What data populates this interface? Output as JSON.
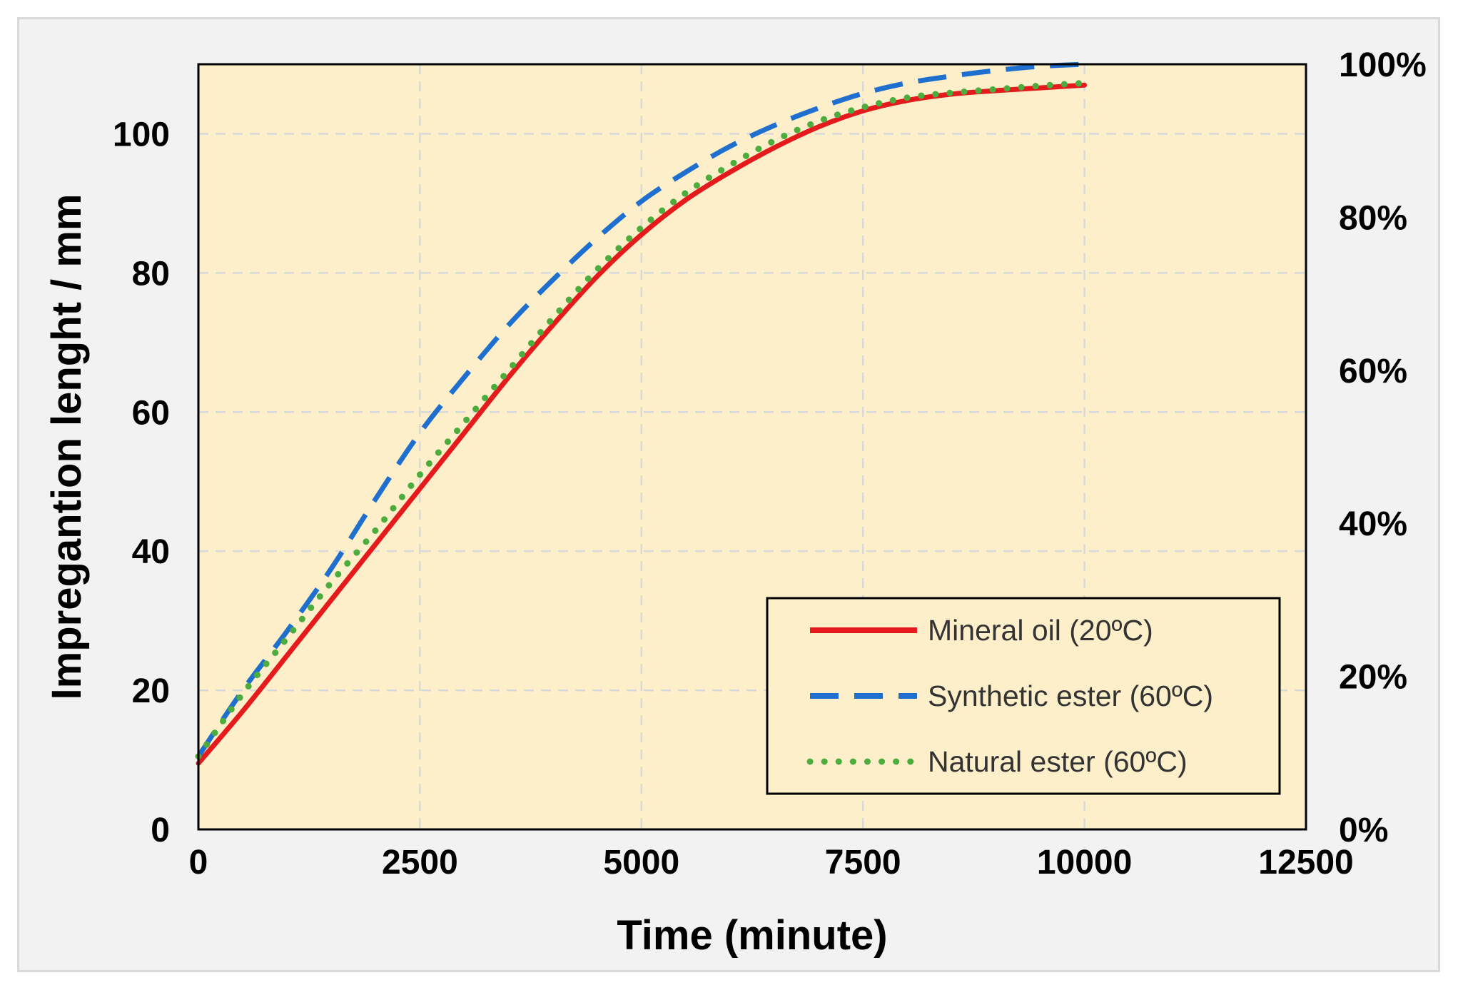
{
  "chart_data": {
    "type": "line",
    "title": "",
    "xlabel": "Time (minute)",
    "ylabel": "Impregantion lenght / mm",
    "xlim": [
      0,
      12500
    ],
    "ylim": [
      0,
      110
    ],
    "x_ticks": [
      "0",
      "2500",
      "5000",
      "7500",
      "10000",
      "12500"
    ],
    "y_ticks": [
      "0",
      "20",
      "40",
      "60",
      "80",
      "100"
    ],
    "y2_ticks": [
      "0%",
      "20%",
      "40%",
      "60%",
      "80%",
      "100%"
    ],
    "y2_lim": [
      0,
      100
    ],
    "grid": true,
    "legend_position": "bottom-right",
    "plot_background": "#fdefc9",
    "series": [
      {
        "name": "Mineral oil (20ºC)",
        "color": "#e41a1c",
        "style": "solid",
        "x": [
          0,
          500,
          1000,
          1500,
          2000,
          2500,
          3000,
          3500,
          4000,
          4500,
          5000,
          5500,
          6000,
          6500,
          7000,
          7500,
          8000,
          8500,
          9000,
          9500,
          10000
        ],
        "y": [
          9.5,
          17,
          25,
          33,
          41,
          49,
          57,
          65,
          72.5,
          79.5,
          85.5,
          90.5,
          94.5,
          98,
          101,
          103.3,
          104.8,
          105.7,
          106.2,
          106.6,
          107
        ]
      },
      {
        "name": "Synthetic ester (60ºC)",
        "color": "#1f6fcf",
        "style": "dashed",
        "x": [
          0,
          500,
          1000,
          1500,
          2000,
          2500,
          3000,
          3500,
          4000,
          4500,
          5000,
          5500,
          6000,
          6500,
          7000,
          7500,
          8000,
          8500,
          9000,
          9500,
          10000
        ],
        "y": [
          10.5,
          20,
          28.5,
          37.5,
          47.5,
          57,
          65,
          72.5,
          79,
          85,
          90.3,
          94.5,
          98.2,
          101.2,
          103.7,
          105.8,
          107.3,
          108.3,
          109.1,
          109.7,
          110
        ]
      },
      {
        "name": "Natural ester (60ºC)",
        "color": "#4cad3e",
        "style": "dotted",
        "x": [
          0,
          500,
          1000,
          1500,
          2000,
          2500,
          3000,
          3500,
          4000,
          4500,
          5000,
          5500,
          6000,
          6500,
          7000,
          7500,
          8000,
          8500,
          9000,
          9500,
          10000
        ],
        "y": [
          10.5,
          19.5,
          27.5,
          35.5,
          43,
          51,
          58.5,
          66,
          73.5,
          80.5,
          86.5,
          91.5,
          95.5,
          99,
          101.8,
          103.8,
          105.2,
          105.9,
          106.4,
          106.9,
          107.3
        ]
      }
    ]
  }
}
